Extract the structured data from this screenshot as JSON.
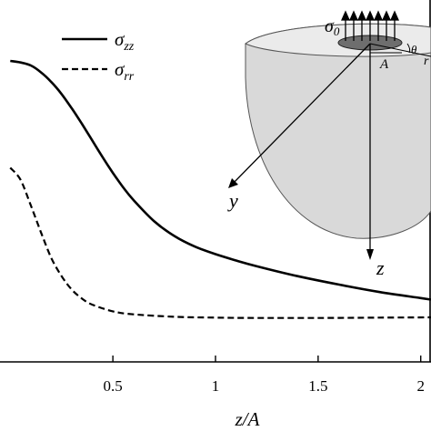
{
  "chart_data": {
    "type": "line",
    "title": "",
    "xlabel": "z/A",
    "ylabel": "",
    "xlim": [
      -0.05,
      2.05
    ],
    "ylim": [
      0.0,
      1.0
    ],
    "xticks": [
      0.5,
      1,
      1.5,
      2
    ],
    "xtick_labels": [
      "0.5",
      "1",
      "1.5",
      "2"
    ],
    "grid": false,
    "legend_position": "top-left",
    "series": [
      {
        "name": "σzz",
        "name_main": "σ",
        "name_sub": "zz",
        "style": "solid",
        "x": [
          0.0,
          0.05,
          0.1,
          0.15,
          0.2,
          0.25,
          0.3,
          0.35,
          0.4,
          0.45,
          0.5,
          0.55,
          0.6,
          0.7,
          0.8,
          0.9,
          1.0,
          1.1,
          1.2,
          1.4,
          1.6,
          1.8,
          2.0,
          2.05
        ],
        "y": [
          1.0,
          0.995,
          0.985,
          0.962,
          0.93,
          0.89,
          0.842,
          0.79,
          0.735,
          0.68,
          0.628,
          0.58,
          0.538,
          0.468,
          0.418,
          0.383,
          0.358,
          0.337,
          0.318,
          0.285,
          0.257,
          0.232,
          0.212,
          0.207
        ]
      },
      {
        "name": "σrr",
        "name_main": "σ",
        "name_sub": "rr",
        "style": "dashed",
        "x": [
          0.0,
          0.05,
          0.1,
          0.15,
          0.2,
          0.25,
          0.3,
          0.35,
          0.4,
          0.5,
          0.6,
          0.8,
          1.0,
          1.2,
          1.5,
          1.8,
          2.05
        ],
        "y": [
          0.645,
          0.605,
          0.52,
          0.43,
          0.345,
          0.285,
          0.24,
          0.21,
          0.19,
          0.168,
          0.158,
          0.15,
          0.147,
          0.146,
          0.146,
          0.147,
          0.148
        ]
      }
    ]
  },
  "inset": {
    "sigma_main": "σ",
    "sigma_sub": "0",
    "a_label": "A",
    "theta_label": "θ",
    "r_label": "r",
    "y_label": "y",
    "z_label": "z"
  }
}
